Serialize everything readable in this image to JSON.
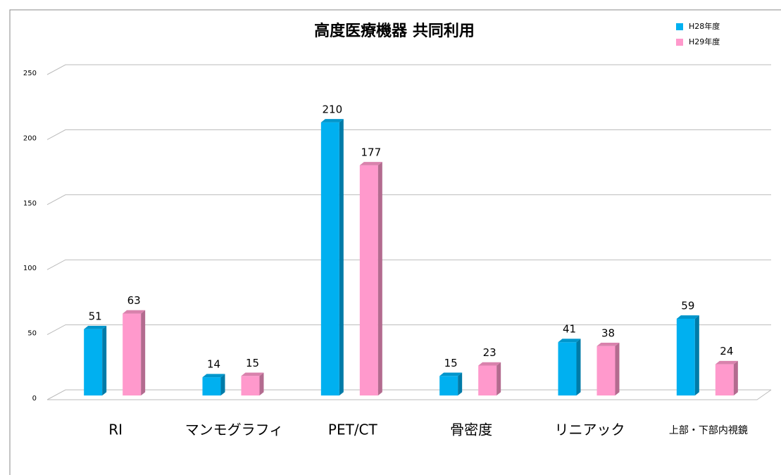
{
  "chart_data": {
    "type": "bar3d",
    "title": "高度医療機器 共同利用",
    "categories": [
      "RI",
      "マンモグラフィ",
      "PET/CT",
      "骨密度",
      "リニアック",
      "上部・下部内視鏡"
    ],
    "series": [
      {
        "name": "H28年度",
        "color": "#00b0f0",
        "values": [
          51,
          14,
          210,
          15,
          41,
          59
        ]
      },
      {
        "name": "H29年度",
        "color": "#ff99cc",
        "values": [
          63,
          15,
          177,
          23,
          38,
          24
        ]
      }
    ],
    "ylim": [
      0,
      250
    ],
    "yticks": [
      0,
      50,
      100,
      150,
      200,
      250
    ],
    "grid": true,
    "legend": "top-right"
  }
}
